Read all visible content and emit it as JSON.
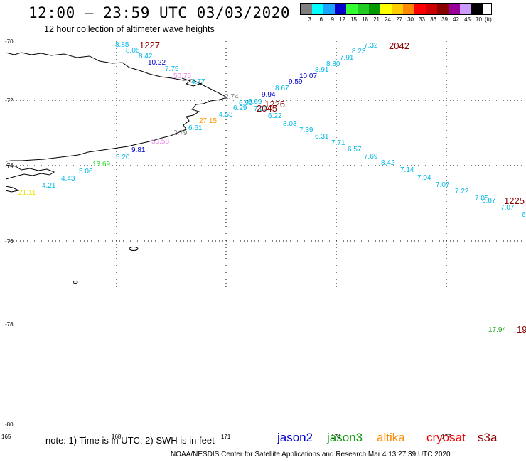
{
  "header": {
    "title": "12:00 – 23:59 UTC 03/03/2020",
    "subtitle": "12 hour collection of altimeter wave heights"
  },
  "color_scale": {
    "unit": "(ft)",
    "bins": [
      {
        "label": "3",
        "color": "#7f7f7f"
      },
      {
        "label": "6",
        "color": "#00ffff"
      },
      {
        "label": "9",
        "color": "#1aa3ff"
      },
      {
        "label": "12",
        "color": "#0000cc"
      },
      {
        "label": "15",
        "color": "#33ff33"
      },
      {
        "label": "18",
        "color": "#22cc22"
      },
      {
        "label": "21",
        "color": "#009900"
      },
      {
        "label": "24",
        "color": "#ffff00"
      },
      {
        "label": "27",
        "color": "#ffcc00"
      },
      {
        "label": "30",
        "color": "#ff8800"
      },
      {
        "label": "33",
        "color": "#ff0000"
      },
      {
        "label": "36",
        "color": "#cc0000"
      },
      {
        "label": "39",
        "color": "#880000"
      },
      {
        "label": "42",
        "color": "#990099"
      },
      {
        "label": "45",
        "color": "#cc99ff"
      },
      {
        "label": "70",
        "color": "#000000"
      }
    ]
  },
  "axes": {
    "lat_labels": [
      "-70",
      "-72",
      "-74",
      "-76",
      "-78",
      "-80"
    ],
    "lon_labels": [
      "165",
      "168",
      "171",
      "174",
      "177"
    ]
  },
  "passes": [
    {
      "time": "1227",
      "color": "#8b0000"
    },
    {
      "time": "2042",
      "color": "#8b0000"
    },
    {
      "time": "1226",
      "color": "#8b0000"
    },
    {
      "time": "2045",
      "color": "#8b0000"
    },
    {
      "time": "1225",
      "color": "#8b0000"
    },
    {
      "time": "19",
      "color": "#8b0000"
    }
  ],
  "observations": [
    {
      "v": "8.85",
      "c": "#00b8e6"
    },
    {
      "v": "8.06",
      "c": "#00b8e6"
    },
    {
      "v": "8.42",
      "c": "#00b8e6"
    },
    {
      "v": "10.22",
      "c": "#0000cc"
    },
    {
      "v": "7.75",
      "c": "#00b8e6"
    },
    {
      "v": "50.75",
      "c": "#ee88ee"
    },
    {
      "v": "4.77",
      "c": "#00b8e6"
    },
    {
      "v": "2.74",
      "c": "#808080"
    },
    {
      "v": "9.94",
      "c": "#0000cc"
    },
    {
      "v": "6.90",
      "c": "#00b8e6"
    },
    {
      "v": "6.69",
      "c": "#00b8e6"
    },
    {
      "v": "6.29",
      "c": "#00b8e6"
    },
    {
      "v": "7.20",
      "c": "#00b8e6"
    },
    {
      "v": "4.53",
      "c": "#00b8e6"
    },
    {
      "v": "27.15",
      "c": "#ff9900"
    },
    {
      "v": "6.61",
      "c": "#00b8e6"
    },
    {
      "v": "2.79",
      "c": "#808080"
    },
    {
      "v": "50.58",
      "c": "#ee88ee"
    },
    {
      "v": "9.81",
      "c": "#0000cc"
    },
    {
      "v": "5.20",
      "c": "#00b8e6"
    },
    {
      "v": "13.69",
      "c": "#33dd33"
    },
    {
      "v": "5.06",
      "c": "#00b8e6"
    },
    {
      "v": "4.43",
      "c": "#00b8e6"
    },
    {
      "v": "4.21",
      "c": "#00b8e6"
    },
    {
      "v": "21.11",
      "c": "#e6e600"
    },
    {
      "v": "7.32",
      "c": "#00b8e6"
    },
    {
      "v": "8.23",
      "c": "#00b8e6"
    },
    {
      "v": "7.91",
      "c": "#00b8e6"
    },
    {
      "v": "8.80",
      "c": "#00b8e6"
    },
    {
      "v": "8.91",
      "c": "#00b8e6"
    },
    {
      "v": "10.07",
      "c": "#0000cc"
    },
    {
      "v": "9.59",
      "c": "#0000cc"
    },
    {
      "v": "8.67",
      "c": "#00b8e6"
    },
    {
      "v": "6.22",
      "c": "#00b8e6"
    },
    {
      "v": "8.03",
      "c": "#00b8e6"
    },
    {
      "v": "7.39",
      "c": "#00b8e6"
    },
    {
      "v": "6.31",
      "c": "#00b8e6"
    },
    {
      "v": "7.71",
      "c": "#00b8e6"
    },
    {
      "v": "6.57",
      "c": "#00b8e6"
    },
    {
      "v": "7.69",
      "c": "#00b8e6"
    },
    {
      "v": "8.42",
      "c": "#00b8e6"
    },
    {
      "v": "7.14",
      "c": "#00b8e6"
    },
    {
      "v": "7.04",
      "c": "#00b8e6"
    },
    {
      "v": "7.07",
      "c": "#00b8e6"
    },
    {
      "v": "7.22",
      "c": "#00b8e6"
    },
    {
      "v": "7.05",
      "c": "#00b8e6"
    },
    {
      "v": "6.87",
      "c": "#00b8e6"
    },
    {
      "v": "7.07",
      "c": "#00b8e6"
    },
    {
      "v": "6",
      "c": "#00b8e6"
    },
    {
      "v": "17.94",
      "c": "#22aa22"
    }
  ],
  "note": "note: 1) Time is in UTC; 2) SWH is in feet",
  "satellites": [
    {
      "name": "jason2",
      "color": "#0000cc"
    },
    {
      "name": "jason3",
      "color": "#119911"
    },
    {
      "name": "altika",
      "color": "#ff8800"
    },
    {
      "name": "cryosat",
      "color": "#ee0000"
    },
    {
      "name": "s3a",
      "color": "#8b0000"
    }
  ],
  "credit": "NOAA/NESDIS Center for Satellite Applications and Research    Mar  4 13:27:39 UTC 2020"
}
